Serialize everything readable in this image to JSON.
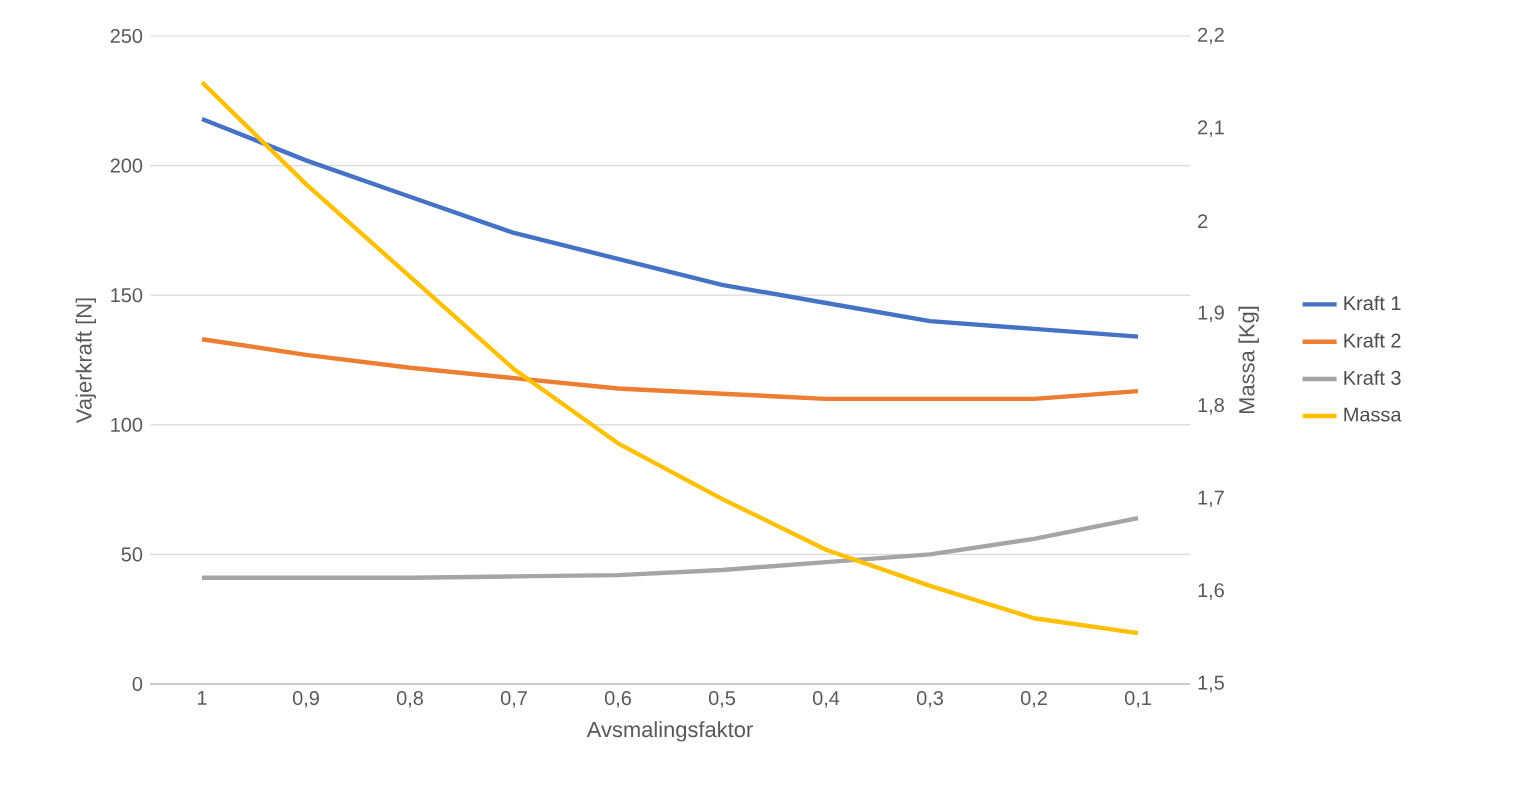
{
  "chart_data": {
    "type": "line",
    "xlabel": "Avsmalingsfaktor",
    "ylabel": "Vajerkraft [N]",
    "y2label": "Massa [Kg]",
    "categories": [
      "1",
      "0,9",
      "0,8",
      "0,7",
      "0,6",
      "0,5",
      "0,4",
      "0,3",
      "0,2",
      "0,1"
    ],
    "series": [
      {
        "name": "Kraft 1",
        "color": "#4472c4",
        "values": [
          218,
          202,
          188,
          174,
          164,
          154,
          147,
          140,
          137,
          134
        ]
      },
      {
        "name": "Kraft 2",
        "color": "#ed7d31",
        "values": [
          133,
          127,
          122,
          118,
          114,
          112,
          110,
          110,
          110,
          113
        ]
      },
      {
        "name": "Kraft 3",
        "color": "#a5a5a5",
        "values": [
          41,
          41,
          41,
          41.5,
          42,
          44,
          47,
          50,
          56,
          64
        ]
      },
      {
        "name": "Massa",
        "color": "#ffc000",
        "axis": "y2",
        "values": [
          2.15,
          2.04,
          1.94,
          1.84,
          1.76,
          1.7,
          1.645,
          1.606,
          1.571,
          1.555
        ]
      }
    ],
    "ylim": [
      0,
      250
    ],
    "yticks": [
      0,
      50,
      100,
      150,
      200,
      250
    ],
    "y2lim": [
      1.5,
      2.2
    ],
    "y2ticks": [
      {
        "value": 1.5,
        "label": "1,5"
      },
      {
        "value": 1.6,
        "label": "1,6"
      },
      {
        "value": 1.7,
        "label": "1,7"
      },
      {
        "value": 1.8,
        "label": "1,8"
      },
      {
        "value": 1.9,
        "label": "1,9"
      },
      2,
      {
        "value": 2.1,
        "label": "2,1"
      },
      {
        "value": 2.2,
        "label": "2,2"
      }
    ],
    "grid": "y",
    "legend": "right",
    "marker": "none",
    "line_style": "solid"
  }
}
